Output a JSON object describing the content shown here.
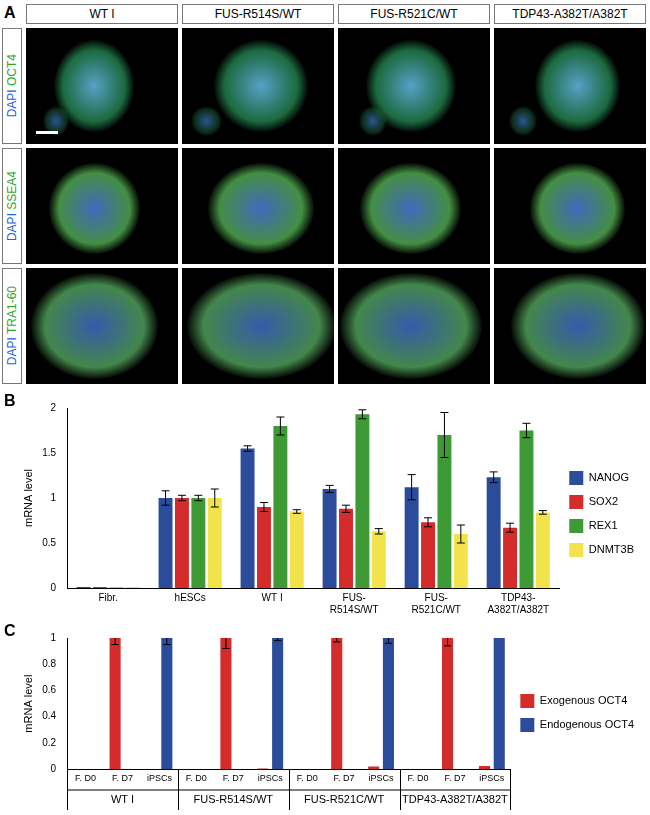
{
  "image_panel": {
    "panel": "A",
    "columns": [
      "WT I",
      "FUS-R514S/WT",
      "FUS-R521C/WT",
      "TDP43-A382T/A382T"
    ],
    "rows": [
      [
        "DAPI",
        "OCT4"
      ],
      [
        "DAPI",
        "SSEA4"
      ],
      [
        "DAPI",
        "TRA1-60"
      ]
    ]
  },
  "chart_data": [
    {
      "panel": "B",
      "type": "bar",
      "y_label": "mRNA level",
      "categories": [
        "Fibr.",
        "hESCs",
        "WT I",
        "FUS-R514S/WT",
        "FUS-R521C/WT",
        "TDP43-A382T/A382T"
      ],
      "series": [
        {
          "name": "NANOG",
          "color": "#2b4c9b",
          "values": [
            0.01,
            1.0,
            1.55,
            1.1,
            1.12,
            1.23
          ],
          "errors": [
            0,
            0.08,
            0.03,
            0.04,
            0.14,
            0.06
          ]
        },
        {
          "name": "SOX2",
          "color": "#d42b2b",
          "values": [
            0.01,
            1.0,
            0.9,
            0.88,
            0.73,
            0.67
          ],
          "errors": [
            0,
            0.03,
            0.05,
            0.04,
            0.05,
            0.05
          ]
        },
        {
          "name": "REX1",
          "color": "#3d9a35",
          "values": [
            0.005,
            1.0,
            1.8,
            1.93,
            1.7,
            1.75
          ],
          "errors": [
            0,
            0.03,
            0.1,
            0.05,
            0.25,
            0.08
          ]
        },
        {
          "name": "DNMT3B",
          "color": "#f2e34c",
          "values": [
            0.01,
            1.0,
            0.85,
            0.63,
            0.6,
            0.84
          ],
          "errors": [
            0,
            0.1,
            0.02,
            0.03,
            0.1,
            0.02
          ]
        }
      ],
      "ylim": [
        0,
        2
      ],
      "yticks": [
        0,
        0.5,
        1,
        1.5,
        2
      ],
      "grid": false,
      "legend": "right"
    },
    {
      "panel": "C",
      "type": "bar",
      "y_label": "mRNA level",
      "categories": [
        "F. D0",
        "F. D7",
        "iPSCs",
        "F. D0",
        "F. D7",
        "iPSCs",
        "F. D0",
        "F. D7",
        "iPSCs",
        "F. D0",
        "F. D7",
        "iPSCs"
      ],
      "groups": [
        "WT I",
        "FUS-R514S/WT",
        "FUS-R521C/WT",
        "TDP43-A382T/A382T"
      ],
      "series": [
        {
          "name": "Exogenous OCT4",
          "color": "#d42b2b",
          "values": [
            0,
            1,
            0,
            0,
            1,
            0.005,
            0,
            1,
            0.02,
            0,
            1,
            0.025
          ],
          "errors": [
            0,
            0.05,
            0,
            0,
            0.08,
            0,
            0,
            0.03,
            0,
            0,
            0.06,
            0
          ]
        },
        {
          "name": "Endogenous OCT4",
          "color": "#2b4c9b",
          "values": [
            0,
            0,
            1,
            0,
            0,
            1,
            0,
            0,
            1,
            0,
            0,
            1
          ],
          "errors": [
            0,
            0,
            0.05,
            0,
            0,
            0.02,
            0,
            0,
            0.04,
            0,
            0,
            0
          ]
        }
      ],
      "ylim": [
        0,
        1
      ],
      "yticks": [
        0,
        0.2,
        0.4,
        0.6,
        0.8,
        1
      ],
      "grid": false,
      "legend": "right"
    }
  ]
}
